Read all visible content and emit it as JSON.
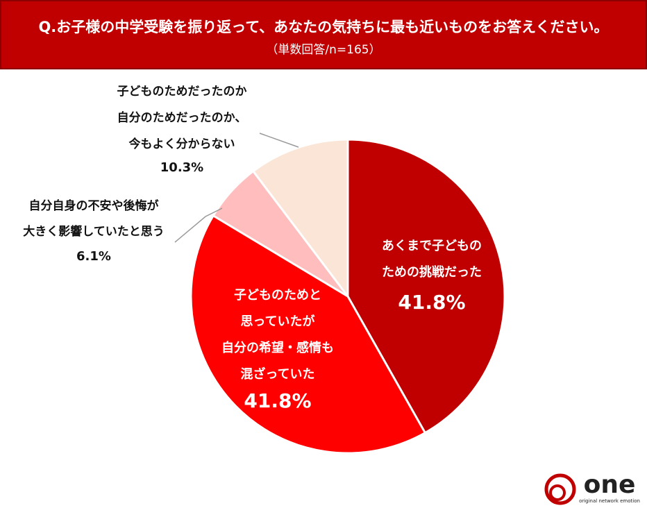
{
  "chart_data": {
    "type": "pie",
    "title": "Q.お子様の中学受験を振り返って、あなたの気持ちに最も近いものをお答えください。",
    "subtitle": "（単数回答/n=165）",
    "categories": [
      [
        "あくまで子どもの",
        "ための挑戦だった"
      ],
      [
        "子どものためと",
        "思っていたが",
        "自分の希望・感情も",
        "混ざっていた"
      ],
      [
        "自分自身の不安や後悔が",
        "大きく影響していたと思う"
      ],
      [
        "子どものためだったのか",
        "自分のためだったのか、",
        "今もよく分からない"
      ]
    ],
    "values": [
      41.8,
      41.8,
      6.1,
      10.3
    ],
    "value_labels": [
      "41.8%",
      "41.8%",
      "6.1%",
      "10.3%"
    ],
    "colors": [
      "#c00000",
      "#ff0000",
      "#ffbdbd",
      "#fbe5d6"
    ]
  },
  "brand": {
    "name": "one",
    "tagline": "original network emotion"
  }
}
